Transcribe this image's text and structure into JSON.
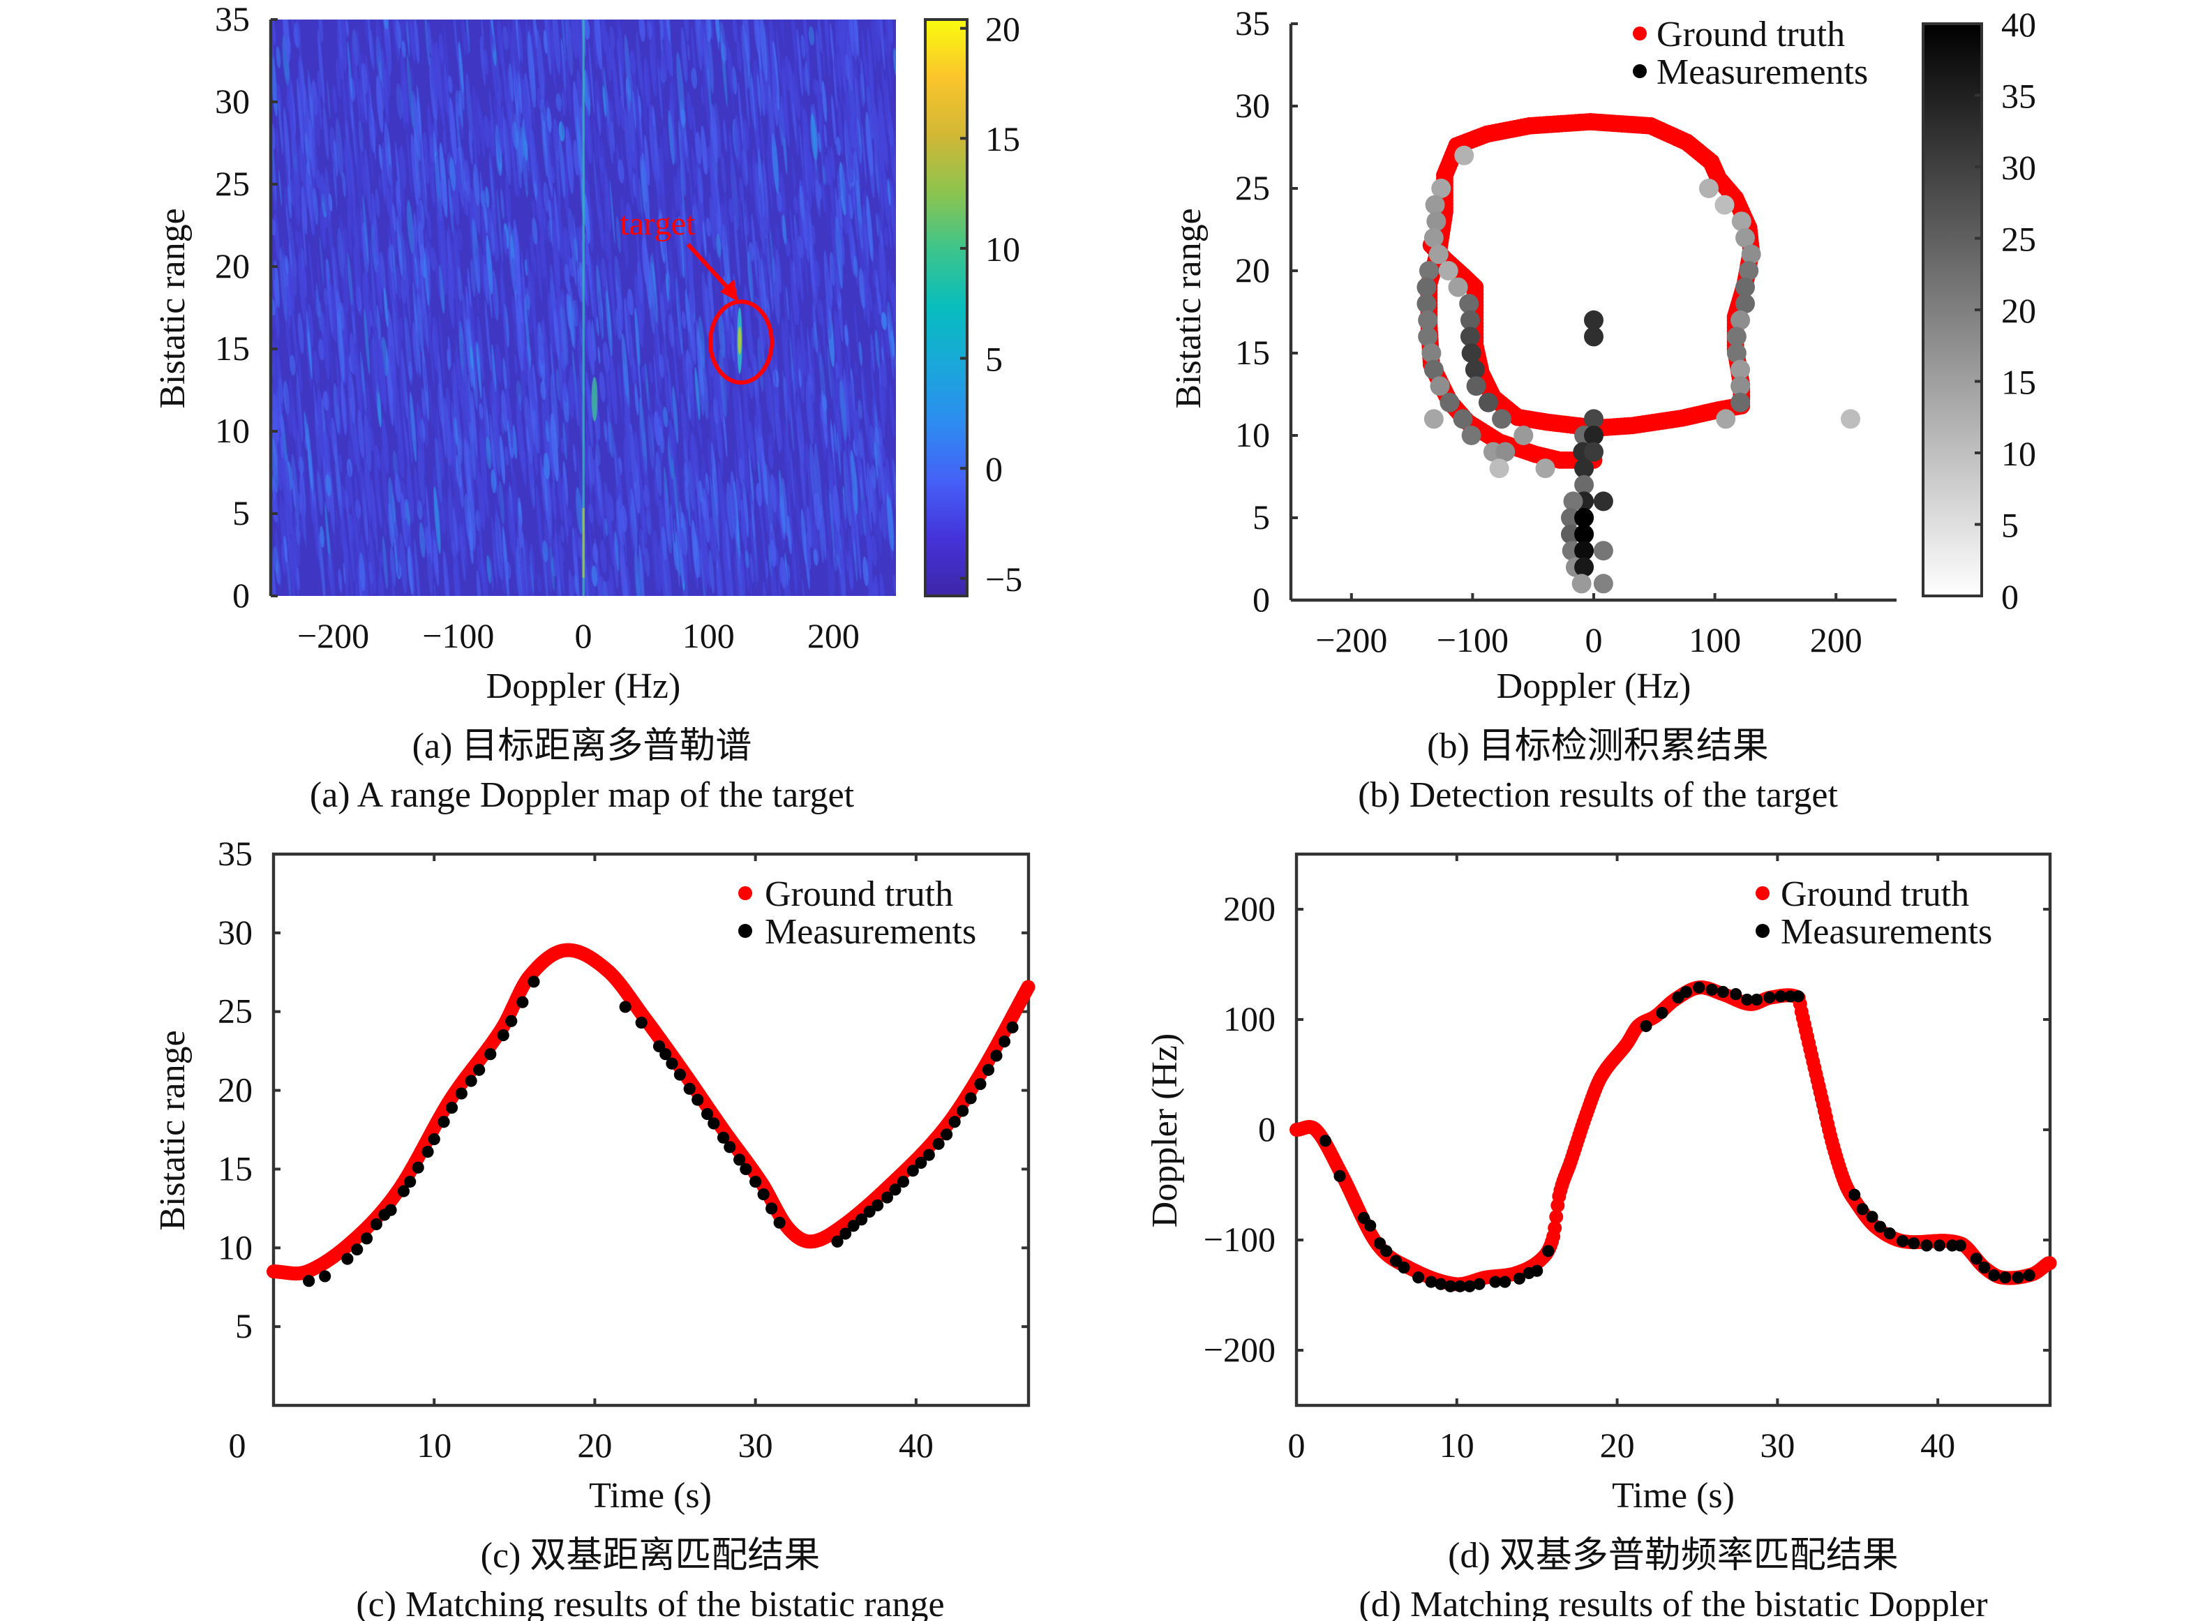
{
  "colors": {
    "ground_truth": "#ff0000",
    "measurements": "#000000",
    "annotation": "#ff0000",
    "axis": "#333333"
  },
  "chart_data": [
    {
      "id": "a",
      "type": "heatmap",
      "caption_zh": "(a) 目标距离多普勒谱",
      "caption_en": "(a) A range Doppler map of the target",
      "xlabel": "Doppler (Hz)",
      "ylabel": "Bistatic range",
      "xlim": [
        -250,
        250
      ],
      "ylim": [
        0,
        35
      ],
      "xticks": [
        -200,
        -100,
        0,
        100,
        200
      ],
      "xtick_labels": [
        "−200",
        "−100",
        "0",
        "100",
        "200"
      ],
      "yticks": [
        0,
        5,
        10,
        15,
        20,
        25,
        30,
        35
      ],
      "ytick_labels": [
        "0",
        "5",
        "10",
        "15",
        "20",
        "25",
        "30",
        "35"
      ],
      "colorbar": {
        "colormap": "parula",
        "lim": [
          -5.8,
          20.4
        ],
        "ticks": [
          -5,
          0,
          5,
          10,
          15,
          20
        ],
        "tick_labels": [
          "−5",
          "0",
          "5",
          "10",
          "15",
          "20"
        ]
      },
      "annotation": {
        "text": "target",
        "doppler": 125,
        "range": 15.5
      },
      "clutter_line_doppler": 0
    },
    {
      "id": "b",
      "type": "scatter",
      "caption_zh": "(b) 目标检测积累结果",
      "caption_en": "(b) Detection results of the target",
      "xlabel": "Doppler (Hz)",
      "ylabel": "Bistatic range",
      "xlim": [
        -250,
        250
      ],
      "ylim": [
        0,
        35
      ],
      "xticks": [
        -200,
        -100,
        0,
        100,
        200
      ],
      "xtick_labels": [
        "−200",
        "−100",
        "0",
        "100",
        "200"
      ],
      "yticks": [
        0,
        5,
        10,
        15,
        20,
        25,
        30,
        35
      ],
      "ytick_labels": [
        "0",
        "5",
        "10",
        "15",
        "20",
        "25",
        "30",
        "35"
      ],
      "legend": [
        "Ground truth",
        "Measurements"
      ],
      "legend_position": "top-right",
      "colorbar": {
        "colormap": "gray-reversed",
        "lim": [
          0,
          40
        ],
        "ticks": [
          0,
          5,
          10,
          15,
          20,
          25,
          30,
          35,
          40
        ],
        "tick_labels": [
          "0",
          "5",
          "10",
          "15",
          "20",
          "25",
          "30",
          "35",
          "40"
        ]
      },
      "ground_truth": {
        "doppler": [
          0,
          -28,
          -48,
          -78,
          -104,
          -119,
          -134,
          -136,
          -136,
          -128,
          -123,
          -123,
          -113,
          -88,
          -53,
          -3,
          47,
          77,
          97,
          103,
          117,
          128,
          130,
          125,
          117,
          117,
          122,
          122,
          103,
          73,
          32,
          2,
          -38,
          -63,
          -83,
          -93,
          -98,
          -98,
          -98,
          -108,
          -123,
          -136
        ],
        "range": [
          8.5,
          8.5,
          8.85,
          9.6,
          10.8,
          12.05,
          14.3,
          16.7,
          19.2,
          21.2,
          23.6,
          25.8,
          27.6,
          28.3,
          28.8,
          29.05,
          28.8,
          27.8,
          26.6,
          25.6,
          24.4,
          22.6,
          21.2,
          19.2,
          17.2,
          15.25,
          13.05,
          11.8,
          11.55,
          11.05,
          10.6,
          10.45,
          10.8,
          11.1,
          12.3,
          13.8,
          15.5,
          17.7,
          19.0,
          19.7,
          20.7,
          21.7
        ]
      },
      "measurements": {
        "doppler": [
          -107,
          -126,
          -131,
          -130,
          -132,
          -128,
          -120,
          -136,
          -138,
          -112,
          -138,
          -103,
          -137,
          -102,
          -137,
          -102,
          -134,
          -101,
          -132,
          -98,
          -127,
          -97,
          -119,
          -87,
          -132,
          -108,
          -76,
          -101,
          -58,
          -83,
          -73,
          -78,
          -40,
          0,
          0,
          0,
          -8,
          0,
          -9,
          0,
          -8,
          -8,
          -8,
          -17,
          8,
          -19,
          -8,
          -19,
          -8,
          -18,
          -8,
          8,
          -15,
          -8,
          -10,
          8,
          95,
          108,
          122,
          125,
          130,
          128,
          125,
          125,
          121,
          118,
          118,
          121,
          121,
          121,
          109,
          212
        ],
        "range": [
          27,
          25,
          24,
          23,
          22,
          21,
          20,
          20,
          19,
          19,
          18,
          18,
          17,
          17,
          16,
          16,
          15,
          15,
          14,
          14,
          13,
          13,
          12,
          12,
          11,
          11,
          11,
          10,
          10,
          9,
          9,
          8,
          8,
          17,
          16,
          11,
          10,
          10,
          9,
          9,
          8,
          7,
          6,
          6,
          6,
          5,
          5,
          4,
          4,
          3,
          3,
          3,
          2,
          2,
          1,
          1,
          25,
          24,
          23,
          22,
          21,
          20,
          19,
          18,
          17,
          16,
          15,
          14,
          13,
          12,
          11,
          11
        ],
        "intensity": [
          10,
          12,
          14,
          15,
          14,
          13,
          11,
          20,
          22,
          13,
          22,
          22,
          20,
          24,
          20,
          28,
          18,
          30,
          22,
          30,
          16,
          24,
          22,
          26,
          12,
          22,
          22,
          20,
          14,
          14,
          16,
          8,
          12,
          32,
          32,
          28,
          22,
          34,
          32,
          30,
          32,
          22,
          34,
          20,
          32,
          22,
          40,
          24,
          40,
          20,
          38,
          20,
          16,
          36,
          14,
          18,
          10,
          8,
          12,
          14,
          16,
          20,
          22,
          22,
          16,
          20,
          20,
          14,
          16,
          22,
          12,
          8
        ]
      }
    },
    {
      "id": "c",
      "type": "scatter",
      "caption_zh": "(c) 双基距离匹配结果",
      "caption_en": "(c) Matching results of the bistatic range",
      "xlabel": "Time (s)",
      "ylabel": "Bistatic range",
      "xlim": [
        0,
        47
      ],
      "ylim": [
        0,
        35
      ],
      "xticks": [
        0,
        10,
        20,
        30,
        40
      ],
      "xtick_labels": [
        "0",
        "10",
        "20",
        "30",
        "40"
      ],
      "yticks": [
        5,
        10,
        15,
        20,
        25,
        30,
        35
      ],
      "ytick_labels": [
        "5",
        "10",
        "15",
        "20",
        "25",
        "30",
        "35"
      ],
      "legend": [
        "Ground truth",
        "Measurements"
      ],
      "legend_position": "top-right",
      "ground_truth": {
        "t": [
          0,
          2.1,
          5,
          7.8,
          11,
          14.2,
          15.9,
          18.2,
          20.8,
          23.1,
          25.5,
          28,
          30.4,
          32,
          33.4,
          35.3,
          38.5,
          41.7,
          44.1,
          47
        ],
        "v": [
          8.5,
          8.5,
          10.5,
          13.7,
          19.4,
          23.9,
          27.2,
          28.9,
          27.6,
          24.6,
          21.2,
          17.5,
          14.1,
          11.3,
          10.4,
          11.3,
          14.1,
          17.5,
          21.2,
          26.6
        ]
      },
      "measurements": {
        "t": [
          2.2,
          3.2,
          4.6,
          5.2,
          5.8,
          6.4,
          6.9,
          7.3,
          8.1,
          8.5,
          9.0,
          9.6,
          10.0,
          10.6,
          11.1,
          11.7,
          12.3,
          12.8,
          13.5,
          14.3,
          14.8,
          15.5,
          16.2,
          21.9,
          22.9,
          24.0,
          24.4,
          24.8,
          25.3,
          25.9,
          26.4,
          27.0,
          27.4,
          28.0,
          28.4,
          29.0,
          29.4,
          30.0,
          30.5,
          31.0,
          31.5,
          35.1,
          35.6,
          36.1,
          36.6,
          37.1,
          37.6,
          38.2,
          38.7,
          39.2,
          39.8,
          40.3,
          40.8,
          41.4,
          41.9,
          42.4,
          42.9,
          43.4,
          44.0,
          44.5,
          45.0,
          45.5,
          46.0
        ],
        "v": [
          7.9,
          8.2,
          9.3,
          9.9,
          10.6,
          11.5,
          12.1,
          12.4,
          13.6,
          14.2,
          15.1,
          16.1,
          16.9,
          18.0,
          18.9,
          19.8,
          20.6,
          21.3,
          22.3,
          23.5,
          24.4,
          25.6,
          26.9,
          25.3,
          24.3,
          22.8,
          22.3,
          21.7,
          21.0,
          20.1,
          19.4,
          18.5,
          17.9,
          17.0,
          16.4,
          15.6,
          15.0,
          14.2,
          13.4,
          12.5,
          11.6,
          10.4,
          10.9,
          11.4,
          11.8,
          12.3,
          12.7,
          13.2,
          13.7,
          14.2,
          14.9,
          15.4,
          15.9,
          16.6,
          17.2,
          18.0,
          18.7,
          19.5,
          20.4,
          21.3,
          22.2,
          23.1,
          24.0
        ]
      }
    },
    {
      "id": "d",
      "type": "scatter",
      "caption_zh": "(d) 双基多普勒频率匹配结果",
      "caption_en": "(d) Matching results of the bistatic Doppler",
      "xlabel": "Time (s)",
      "ylabel": "Doppler (Hz)",
      "xlim": [
        0,
        47
      ],
      "ylim": [
        -250,
        250
      ],
      "xticks": [
        0,
        10,
        20,
        30,
        40
      ],
      "xtick_labels": [
        "0",
        "10",
        "20",
        "30",
        "40"
      ],
      "yticks": [
        -200,
        -100,
        0,
        100,
        200
      ],
      "ytick_labels": [
        "−200",
        "−100",
        "0",
        "100",
        "200"
      ],
      "legend": [
        "Ground truth",
        "Measurements"
      ],
      "legend_position": "top-right",
      "ground_truth": {
        "t": [
          0,
          1.2,
          2.8,
          5,
          7,
          9.9,
          11.8,
          13.7,
          15.3,
          16,
          16.4,
          17.1,
          18.1,
          19,
          20.6,
          21.3,
          22.4,
          23.6,
          25.1,
          26.6,
          28.3,
          29.6,
          31.3,
          31.5,
          32.2,
          32.8,
          33.4,
          34.2,
          34.9,
          36.1,
          37.8,
          41.4,
          42.9,
          44,
          45.9,
          46.9
        ],
        "v": [
          0,
          0,
          -40,
          -103,
          -125,
          -140,
          -134,
          -130,
          -117,
          -98,
          -59,
          -29,
          15,
          48,
          78,
          94,
          103,
          118,
          129,
          123,
          114,
          120,
          120,
          107,
          63,
          26,
          -11,
          -48,
          -66,
          -88,
          -101,
          -103,
          -125,
          -134,
          -131,
          -121
        ]
      },
      "measurements": {
        "t": [
          1.8,
          2.7,
          4.2,
          4.6,
          5.2,
          5.6,
          6.2,
          6.7,
          7.6,
          8.4,
          9.0,
          9.6,
          10.2,
          10.8,
          11.4,
          12.4,
          13.0,
          13.9,
          14.5,
          15.0,
          15.7,
          21.8,
          22.8,
          23.8,
          24.3,
          25.1,
          25.9,
          26.6,
          27.4,
          28.1,
          28.7,
          29.5,
          30.2,
          30.8,
          31.3,
          34.8,
          35.3,
          35.9,
          36.4,
          37.0,
          37.8,
          38.5,
          39.3,
          40.1,
          40.9,
          41.4,
          42.4,
          42.9,
          43.5,
          44.2,
          45.0,
          45.7
        ],
        "v": [
          -10,
          -42,
          -80,
          -87,
          -103,
          -110,
          -119,
          -125,
          -134,
          -138,
          -140,
          -142,
          -142,
          -142,
          -140,
          -138,
          -138,
          -135,
          -130,
          -128,
          -110,
          94,
          106,
          120,
          125,
          129,
          127,
          125,
          123,
          118,
          118,
          120,
          121,
          121,
          121,
          -59,
          -72,
          -79,
          -88,
          -94,
          -101,
          -103,
          -105,
          -105,
          -105,
          -105,
          -117,
          -125,
          -132,
          -134,
          -134,
          -132
        ]
      }
    }
  ]
}
